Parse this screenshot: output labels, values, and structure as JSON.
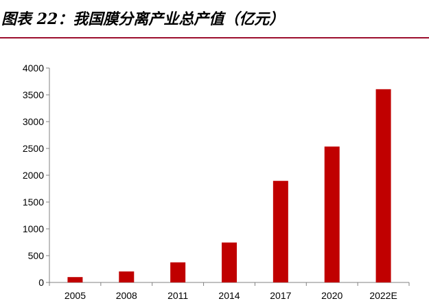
{
  "title": "图表 22：我国膜分离产业总产值（亿元）",
  "chart_data": {
    "type": "bar",
    "title": "我国膜分离产业总产值（亿元）",
    "categories": [
      "2005",
      "2008",
      "2011",
      "2014",
      "2017",
      "2020",
      "2022E"
    ],
    "values": [
      100,
      205,
      375,
      745,
      1895,
      2535,
      3605
    ],
    "ylim": [
      0,
      4000
    ],
    "yticks": [
      0,
      500,
      1000,
      1500,
      2000,
      2500,
      3000,
      3500,
      4000
    ],
    "xlabel": "",
    "ylabel": "",
    "grid": false,
    "legend": "none",
    "bar_color": "#c00000",
    "axis_color": "#808080"
  }
}
